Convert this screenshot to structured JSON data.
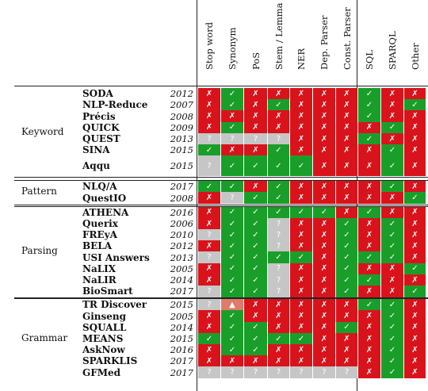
{
  "colors": {
    "red": "#d9131b",
    "green": "#1a9e2a",
    "grey": "#c6c6c6",
    "partial": "#e07a6a"
  },
  "symbols": {
    "x": "✗",
    "y": "✓",
    "q": "?",
    "p": "▲"
  },
  "columns": [
    "Stop word",
    "Synonym",
    "PoS",
    "Stem / Lemma",
    "NER",
    "Dep. Parser",
    "Const. Parser",
    "SQL",
    "SPARQL",
    "Other"
  ],
  "groups": [
    {
      "category": "Keyword",
      "rows": [
        {
          "system": "SODA",
          "year": "2012",
          "cells": [
            "x",
            "y",
            "x",
            "x",
            "x",
            "x",
            "x",
            "y",
            "x",
            "x"
          ]
        },
        {
          "system": "NLP-Reduce",
          "year": "2007",
          "cells": [
            "x",
            "y",
            "x",
            "y",
            "x",
            "x",
            "x",
            "y",
            "x",
            "y"
          ]
        },
        {
          "system": "Précis",
          "year": "2008",
          "cells": [
            "x",
            "x",
            "x",
            "x",
            "x",
            "x",
            "x",
            "y",
            "x",
            "x"
          ]
        },
        {
          "system": "QUICK",
          "year": "2009",
          "cells": [
            "x",
            "y",
            "x",
            "x",
            "x",
            "x",
            "x",
            "x",
            "y",
            "x"
          ]
        },
        {
          "system": "QUEST",
          "year": "2013",
          "cells": [
            "q",
            "q",
            "q",
            "q",
            "x",
            "x",
            "x",
            "y",
            "x",
            "x"
          ]
        },
        {
          "system": "SINA",
          "year": "2015",
          "cells": [
            "y",
            "x",
            "x",
            "y",
            "x",
            "x",
            "x",
            "x",
            "y",
            "x"
          ]
        },
        {
          "system": "Aqqu",
          "year": "2015",
          "cells": [
            "q",
            "y",
            "y",
            "y",
            "y",
            "x",
            "x",
            "x",
            "y",
            "x"
          ]
        }
      ]
    },
    {
      "category": "Pattern",
      "rows": [
        {
          "system": "NLQ/A",
          "year": "2017",
          "cells": [
            "y",
            "y",
            "x",
            "y",
            "x",
            "x",
            "x",
            "x",
            "y",
            "x"
          ]
        },
        {
          "system": "QuestIO",
          "year": "2008",
          "cells": [
            "x",
            "q",
            "y",
            "y",
            "x",
            "x",
            "x",
            "x",
            "x",
            "y"
          ]
        }
      ]
    },
    {
      "category": "Parsing",
      "rows": [
        {
          "system": "ATHENA",
          "year": "2016",
          "cells": [
            "x",
            "y",
            "y",
            "y",
            "y",
            "y",
            "x",
            "y",
            "x",
            "x"
          ]
        },
        {
          "system": "Querix",
          "year": "2006",
          "cells": [
            "x",
            "y",
            "y",
            "q",
            "x",
            "x",
            "y",
            "x",
            "y",
            "x"
          ]
        },
        {
          "system": "FREyA",
          "year": "2010",
          "cells": [
            "q",
            "y",
            "y",
            "q",
            "x",
            "x",
            "y",
            "x",
            "y",
            "x"
          ]
        },
        {
          "system": "BELA",
          "year": "2012",
          "cells": [
            "x",
            "y",
            "y",
            "q",
            "x",
            "x",
            "y",
            "x",
            "y",
            "x"
          ]
        },
        {
          "system": "USI Answers",
          "year": "2013",
          "cells": [
            "q",
            "y",
            "y",
            "y",
            "y",
            "x",
            "y",
            "y",
            "y",
            "x"
          ]
        },
        {
          "system": "NaLIX",
          "year": "2005",
          "cells": [
            "x",
            "y",
            "y",
            "q",
            "x",
            "x",
            "y",
            "x",
            "x",
            "y"
          ]
        },
        {
          "system": "NaLIR",
          "year": "2014",
          "cells": [
            "x",
            "y",
            "y",
            "q",
            "x",
            "x",
            "y",
            "y",
            "x",
            "x"
          ]
        },
        {
          "system": "BioSmart",
          "year": "2017",
          "cells": [
            "q",
            "y",
            "y",
            "q",
            "x",
            "x",
            "y",
            "x",
            "x",
            "y"
          ]
        }
      ]
    },
    {
      "category": "Grammar",
      "rows": [
        {
          "system": "TR Discover",
          "year": "2015",
          "cells": [
            "q",
            "p",
            "x",
            "x",
            "x",
            "x",
            "x",
            "y",
            "y",
            "x"
          ]
        },
        {
          "system": "Ginseng",
          "year": "2005",
          "cells": [
            "x",
            "y",
            "x",
            "x",
            "x",
            "x",
            "x",
            "x",
            "y",
            "x"
          ]
        },
        {
          "system": "SQUALL",
          "year": "2014",
          "cells": [
            "x",
            "y",
            "y",
            "x",
            "x",
            "x",
            "y",
            "x",
            "y",
            "x"
          ]
        },
        {
          "system": "MEANS",
          "year": "2015",
          "cells": [
            "y",
            "y",
            "y",
            "y",
            "y",
            "x",
            "x",
            "x",
            "y",
            "x"
          ]
        },
        {
          "system": "AskNow",
          "year": "2016",
          "cells": [
            "x",
            "y",
            "y",
            "x",
            "x",
            "x",
            "x",
            "x",
            "y",
            "x"
          ]
        },
        {
          "system": "SPARKLIS",
          "year": "2017",
          "cells": [
            "x",
            "x",
            "x",
            "x",
            "x",
            "x",
            "x",
            "x",
            "y",
            "x"
          ]
        },
        {
          "system": "GFMed",
          "year": "2017",
          "cells": [
            "q",
            "q",
            "q",
            "q",
            "q",
            "q",
            "q",
            "x",
            "y",
            "x"
          ]
        }
      ]
    }
  ]
}
